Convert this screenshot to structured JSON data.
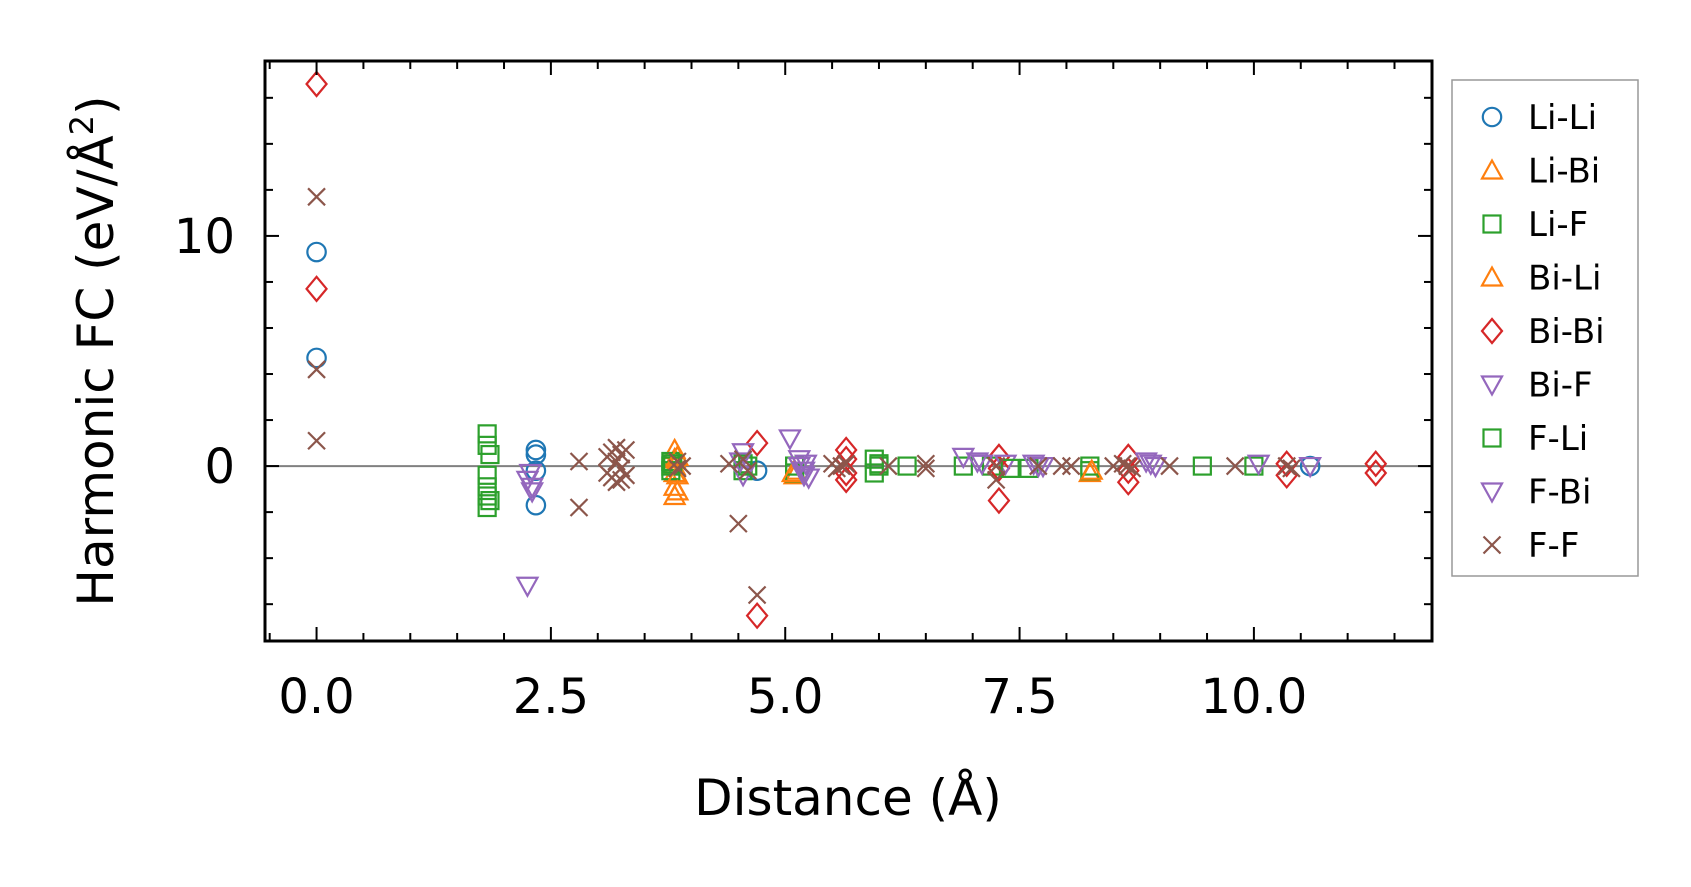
{
  "chart_data": {
    "type": "scatter",
    "title": "",
    "xlabel": "Distance (Å)",
    "ylabel_main": "Harmonic FC (eV/Å",
    "ylabel_sup": "2",
    "ylabel_close": ")",
    "xlim": [
      -0.55,
      11.9
    ],
    "ylim": [
      -7.6,
      17.6
    ],
    "x_ticks": [
      0.0,
      2.5,
      5.0,
      7.5,
      10.0
    ],
    "x_tick_labels": [
      "0.0",
      "2.5",
      "5.0",
      "7.5",
      "10.0"
    ],
    "x_minor_step": 0.5,
    "y_ticks": [
      0,
      10
    ],
    "y_tick_labels": [
      "0",
      "10"
    ],
    "y_minor_step": 2,
    "zero_line": true,
    "legend_position": "right",
    "series": [
      {
        "name": "Li-Li",
        "marker": "circle",
        "color": "#1f77b4",
        "x": [
          0.0,
          0.0,
          2.34,
          2.34,
          2.34,
          2.34,
          4.7,
          10.6
        ],
        "y": [
          9.3,
          4.7,
          0.7,
          0.5,
          -0.2,
          -1.7,
          -0.2,
          0.0
        ]
      },
      {
        "name": "Li-Bi",
        "marker": "triangle-up",
        "color": "#ff7f0e",
        "x": [
          3.82,
          3.82,
          3.82,
          3.82,
          3.82,
          3.82,
          5.1,
          5.1,
          8.25
        ],
        "y": [
          0.7,
          0.3,
          0.0,
          -0.3,
          -0.9,
          -1.3,
          -0.2,
          -0.4,
          -0.3
        ]
      },
      {
        "name": "Li-F",
        "marker": "square",
        "color": "#2ca02c",
        "x": [
          1.82,
          1.82,
          1.82,
          1.82,
          1.82,
          1.82,
          3.78,
          3.78,
          3.78,
          4.55,
          4.55,
          5.1,
          5.1,
          5.95,
          5.95,
          6.0,
          6.3,
          6.9,
          7.2,
          7.6,
          8.25,
          8.25,
          9.45,
          10.0
        ],
        "y": [
          1.4,
          0.9,
          -0.4,
          -0.9,
          -1.3,
          -1.8,
          0.2,
          0.0,
          -0.2,
          0.1,
          -0.2,
          0.0,
          -0.3,
          0.3,
          -0.3,
          0.0,
          0.0,
          0.0,
          0.0,
          -0.1,
          0.0,
          -0.2,
          0.0,
          0.0
        ]
      },
      {
        "name": "Bi-Li",
        "marker": "triangle-up",
        "color": "#ff7f0e",
        "x": [
          3.85,
          3.85,
          3.85,
          5.08,
          8.27
        ],
        "y": [
          0.4,
          -0.4,
          -1.1,
          -0.3,
          -0.2
        ]
      },
      {
        "name": "Bi-Bi",
        "marker": "diamond",
        "color": "#d62728",
        "x": [
          0.0,
          0.0,
          4.7,
          4.7,
          5.65,
          5.65,
          5.65,
          5.65,
          7.28,
          7.28,
          7.28,
          8.66,
          8.66,
          8.66,
          10.35,
          10.35,
          11.3,
          11.3
        ],
        "y": [
          16.6,
          7.7,
          1.0,
          -6.5,
          0.7,
          0.3,
          -0.3,
          -0.6,
          0.4,
          -0.1,
          -1.5,
          0.4,
          -0.2,
          -0.7,
          0.1,
          -0.4,
          0.1,
          -0.3
        ]
      },
      {
        "name": "Bi-F",
        "marker": "triangle-down",
        "color": "#9467bd",
        "x": [
          2.25,
          2.25,
          2.3,
          2.3,
          4.55,
          4.55,
          5.05,
          5.15,
          5.15,
          5.2,
          5.2,
          5.25,
          6.9,
          7.1,
          7.35,
          7.65,
          7.7,
          8.9,
          8.95,
          10.05,
          10.6
        ],
        "y": [
          -5.2,
          -0.6,
          -0.9,
          -1.1,
          0.6,
          -0.4,
          1.2,
          0.3,
          0.0,
          -0.2,
          -0.4,
          -0.5,
          0.4,
          0.1,
          0.1,
          0.1,
          0.0,
          0.1,
          0.0,
          0.1,
          0.0
        ]
      },
      {
        "name": "F-Li",
        "marker": "square",
        "color": "#2ca02c",
        "x": [
          1.85,
          1.85,
          3.8,
          4.6,
          6.0,
          7.4
        ],
        "y": [
          0.5,
          -1.5,
          0.1,
          0.0,
          0.1,
          -0.1
        ]
      },
      {
        "name": "F-Bi",
        "marker": "triangle-down",
        "color": "#9467bd",
        "x": [
          2.28,
          4.52,
          5.22,
          7.05,
          7.75,
          8.85
        ],
        "y": [
          -0.3,
          0.2,
          0.1,
          0.2,
          0.0,
          0.2
        ]
      },
      {
        "name": "F-F",
        "marker": "x",
        "color": "#8c564b",
        "x": [
          0.0,
          0.0,
          0.0,
          2.8,
          2.8,
          3.1,
          3.1,
          3.15,
          3.15,
          3.2,
          3.2,
          3.2,
          3.25,
          3.25,
          3.25,
          3.3,
          3.3,
          3.85,
          3.85,
          3.9,
          4.4,
          4.5,
          4.55,
          4.6,
          4.7,
          5.5,
          5.55,
          5.6,
          5.65,
          6.1,
          6.5,
          6.5,
          7.25,
          7.25,
          7.7,
          7.95,
          8.05,
          8.5,
          8.6,
          8.65,
          8.7,
          9.1,
          9.8,
          10.35,
          10.4
        ],
        "y": [
          11.7,
          4.2,
          1.1,
          0.2,
          -1.8,
          0.4,
          -0.3,
          0.6,
          -0.5,
          0.8,
          0.2,
          -0.7,
          0.5,
          -0.1,
          -0.6,
          0.7,
          -0.4,
          0.2,
          -0.1,
          0.0,
          0.1,
          -2.5,
          0.3,
          -0.2,
          -5.6,
          0.1,
          -0.1,
          0.0,
          0.1,
          0.0,
          0.1,
          -0.1,
          0.0,
          -0.6,
          0.0,
          0.0,
          0.0,
          0.0,
          0.1,
          0.0,
          -0.1,
          0.0,
          0.0,
          0.0,
          -0.1
        ]
      }
    ]
  }
}
